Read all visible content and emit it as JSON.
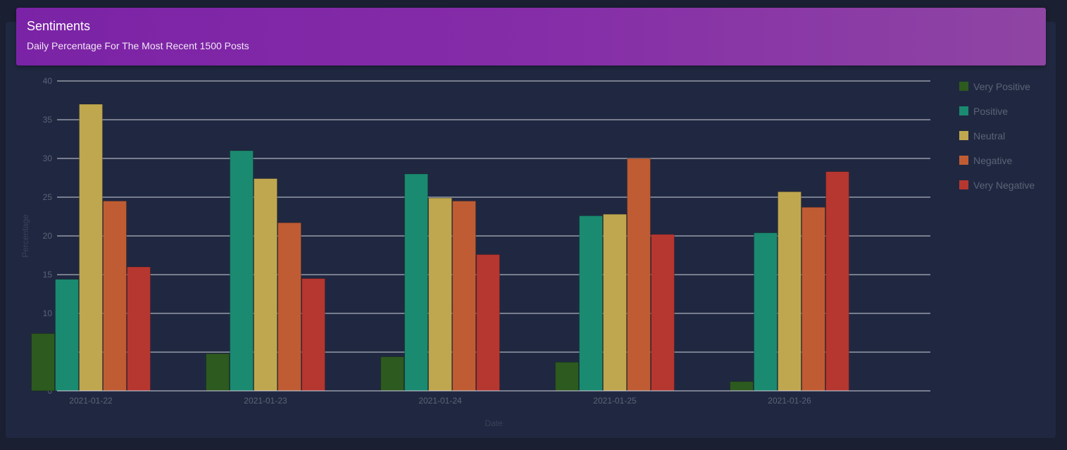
{
  "header": {
    "title": "Sentiments",
    "subtitle": "Daily Percentage For The Most Recent 1500 Posts"
  },
  "colors": {
    "page_bg": "#1a1f31",
    "card_bg": "#202841",
    "grid": "#d0d4dc",
    "axis_text": "#5b6377",
    "axis_title": "#3a4257"
  },
  "chart_data": {
    "type": "bar",
    "title": "Sentiments",
    "subtitle": "Daily Percentage For The Most Recent 1500 Posts",
    "xlabel": "Date",
    "ylabel": "Percentage",
    "ylim": [
      0,
      40
    ],
    "yticks": [
      0,
      5,
      10,
      15,
      20,
      25,
      30,
      35,
      40
    ],
    "grid": true,
    "legend_position": "right",
    "categories": [
      "2021-01-22",
      "2021-01-23",
      "2021-01-24",
      "2021-01-25",
      "2021-01-26"
    ],
    "series": [
      {
        "name": "Very Positive",
        "color": "#2d5a1f",
        "values": [
          7.4,
          4.8,
          4.4,
          3.7,
          1.2
        ]
      },
      {
        "name": "Positive",
        "color": "#1a8a70",
        "values": [
          14.4,
          31.0,
          28.0,
          22.6,
          20.4
        ]
      },
      {
        "name": "Neutral",
        "color": "#bfa74f",
        "values": [
          37.0,
          27.4,
          24.9,
          22.8,
          25.7
        ]
      },
      {
        "name": "Negative",
        "color": "#bf5c33",
        "values": [
          24.5,
          21.7,
          24.5,
          30.0,
          23.7
        ]
      },
      {
        "name": "Very Negative",
        "color": "#b63630",
        "values": [
          16.0,
          14.5,
          17.6,
          20.2,
          28.3
        ]
      }
    ]
  }
}
